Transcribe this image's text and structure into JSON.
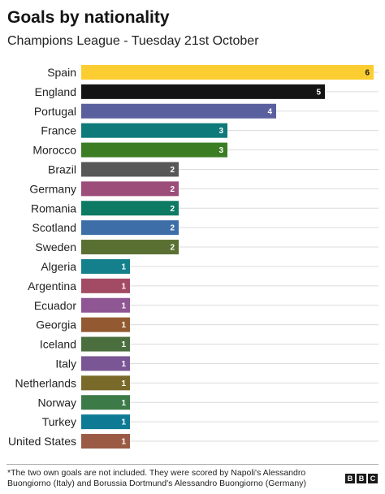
{
  "chart_data": {
    "type": "bar",
    "orientation": "horizontal",
    "title": "Goals by nationality",
    "subtitle": "Champions League - Tuesday 21st October",
    "categories": [
      "Spain",
      "England",
      "Portugal",
      "France",
      "Morocco",
      "Brazil",
      "Germany",
      "Romania",
      "Scotland",
      "Sweden",
      "Algeria",
      "Argentina",
      "Ecuador",
      "Georgia",
      "Iceland",
      "Italy",
      "Netherlands",
      "Norway",
      "Turkey",
      "United States"
    ],
    "values": [
      6,
      5,
      4,
      3,
      3,
      2,
      2,
      2,
      2,
      2,
      1,
      1,
      1,
      1,
      1,
      1,
      1,
      1,
      1,
      1
    ],
    "colors": [
      "#fccd31",
      "#141414",
      "#5a5f9e",
      "#0f7a7a",
      "#3b7d23",
      "#575757",
      "#9c4d7a",
      "#0d7a64",
      "#3d6ea7",
      "#5a7033",
      "#13808c",
      "#a34b64",
      "#8e5692",
      "#935a32",
      "#4b6e3f",
      "#7a5694",
      "#7a6a2a",
      "#3c7a48",
      "#0f7a94",
      "#9a5a44"
    ],
    "xlim": [
      0,
      6
    ],
    "grid": true,
    "legend": "none"
  },
  "footnote": "*The two own goals are not included. They were scored by Napoli's Alessandro Buongiorno (Italy) and Borussia Dortmund's Alessandro Buongiorno (Germany)",
  "logo": [
    "B",
    "B",
    "C"
  ]
}
